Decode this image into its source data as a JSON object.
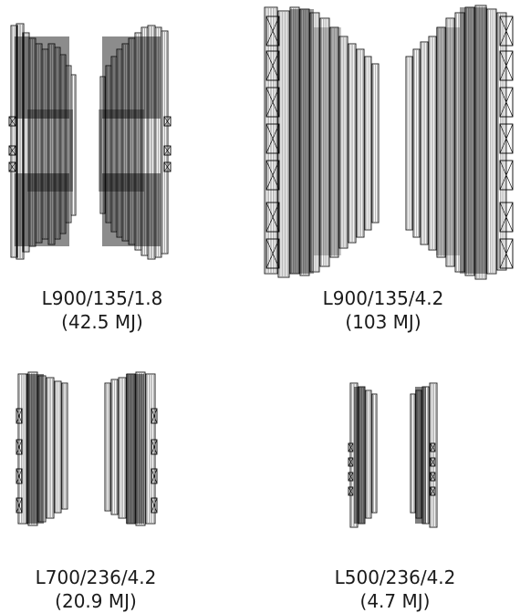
{
  "panels": [
    {
      "id": "p1",
      "name": "L900/135/1.8",
      "energy": "(42.5 MJ)"
    },
    {
      "id": "p2",
      "name": "L900/135/4.2",
      "energy": "(103 MJ)"
    },
    {
      "id": "p3",
      "name": "L700/236/4.2",
      "energy": "(20.9 MJ)"
    },
    {
      "id": "p4",
      "name": "L500/236/4.2",
      "energy": "(4.7 MJ)"
    }
  ]
}
